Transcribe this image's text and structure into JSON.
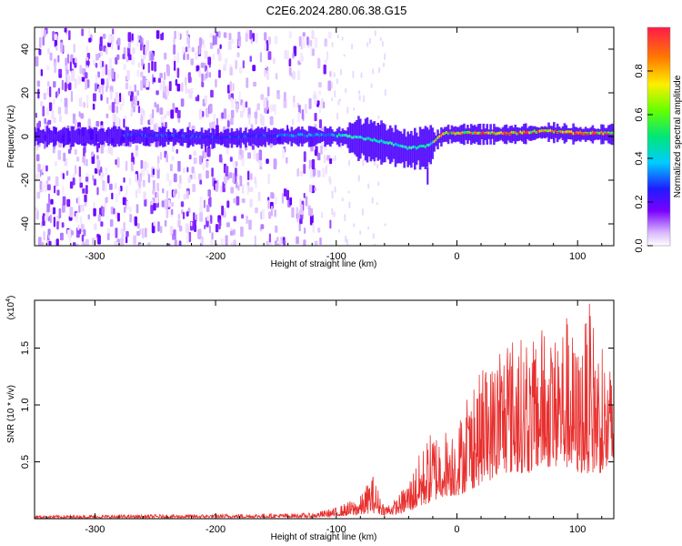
{
  "title": "C2E6.2024.280.06.38.G15",
  "chart_data": [
    {
      "type": "heatmap",
      "name": "spectrogram",
      "xlabel": "Height of straight line (km)",
      "ylabel": "Frequency (Hz)",
      "xlim": [
        -350,
        130
      ],
      "ylim": [
        -50,
        50
      ],
      "xticks": [
        -300,
        -200,
        -100,
        0,
        100
      ],
      "yticks": [
        -40,
        -20,
        0,
        20,
        40
      ],
      "ridge": {
        "x": [
          -350,
          -250,
          -200,
          -150,
          -120,
          -100,
          -80,
          -60,
          -40,
          -25,
          -10,
          0,
          25,
          50,
          75,
          100,
          130
        ],
        "freq_hz": [
          0,
          0,
          -1,
          0,
          0,
          0,
          -1,
          -3,
          -6,
          -5,
          1,
          1,
          1,
          1,
          2,
          1,
          1
        ]
      },
      "noise_region_x": [
        -350,
        -105
      ],
      "colorbar": {
        "label": "Normalized spectral amplitude",
        "range": [
          0,
          1
        ],
        "ticks": [
          "0.0",
          "0.2",
          "0.4",
          "0.6",
          "0.8"
        ]
      }
    },
    {
      "type": "line",
      "name": "snr",
      "xlabel": "Height of straight line (km)",
      "ylabel": "SNR (10 * v/v)",
      "yscale_label": "(x10",
      "yscale_exp": "4",
      "xlim": [
        -350,
        130
      ],
      "ylim": [
        0,
        1.92
      ],
      "xticks": [
        -300,
        -200,
        -100,
        0,
        100
      ],
      "yticks": [
        "0.5",
        "1.0",
        "1.5"
      ],
      "color": "#e8302f",
      "envelope": {
        "x": [
          -350,
          -200,
          -120,
          -100,
          -80,
          -70,
          -60,
          -50,
          -40,
          -30,
          -20,
          -10,
          0,
          10,
          20,
          30,
          40,
          50,
          60,
          70,
          80,
          90,
          100,
          110,
          120,
          130
        ],
        "max": [
          0.03,
          0.04,
          0.05,
          0.1,
          0.2,
          0.4,
          0.12,
          0.18,
          0.35,
          0.6,
          0.8,
          0.8,
          0.85,
          1.1,
          1.3,
          1.4,
          1.6,
          1.65,
          1.5,
          1.7,
          1.6,
          1.85,
          1.5,
          1.9,
          1.5,
          1.3
        ],
        "baseline": [
          0.005,
          0.008,
          0.01,
          0.02,
          0.03,
          0.05,
          0.03,
          0.04,
          0.06,
          0.1,
          0.15,
          0.2,
          0.2,
          0.25,
          0.3,
          0.35,
          0.4,
          0.4,
          0.4,
          0.45,
          0.45,
          0.45,
          0.4,
          0.4,
          0.4,
          0.4
        ]
      }
    }
  ]
}
